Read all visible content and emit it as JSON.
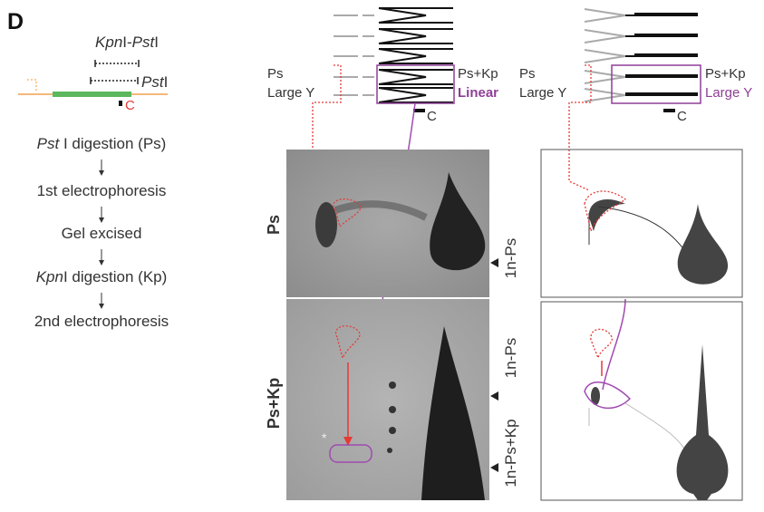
{
  "panel_label": "D",
  "map": {
    "enzyme_pair": [
      {
        "text": "Kpn",
        "italic": true
      },
      {
        "text": "I-"
      },
      {
        "text": "Pst",
        "italic": true
      },
      {
        "text": "I"
      }
    ],
    "enzyme_single": [
      {
        "text": "Pst",
        "italic": true
      },
      {
        "text": "I"
      }
    ],
    "probe": "C"
  },
  "steps": [
    [
      {
        "text": "Pst",
        "italic": true
      },
      {
        "text": " I digestion (Ps)"
      }
    ],
    [
      {
        "text": "1st electrophoresis"
      }
    ],
    [
      {
        "text": "Gel excised"
      }
    ],
    [
      {
        "text": "Kpn",
        "italic": true
      },
      {
        "text": "I digestion (Kp)"
      }
    ],
    [
      {
        "text": "2nd electrophoresis"
      }
    ]
  ],
  "diagram_left": {
    "label_ps": "Ps",
    "label_y": "Large Y",
    "label_kp": "Ps+Kp",
    "label_result": "Linear",
    "probe": "C"
  },
  "diagram_right": {
    "label_ps": "Ps",
    "label_y": "Large Y",
    "label_kp": "Ps+Kp",
    "label_result": "Large Y",
    "probe": "C"
  },
  "gels": {
    "row_top": "Ps",
    "row_bottom": "Ps+Kp",
    "marker_top": "1n-Ps",
    "marker_bottom_1": "1n-Ps",
    "marker_bottom_2": "1n-Ps+Kp",
    "asterisk": "*"
  }
}
